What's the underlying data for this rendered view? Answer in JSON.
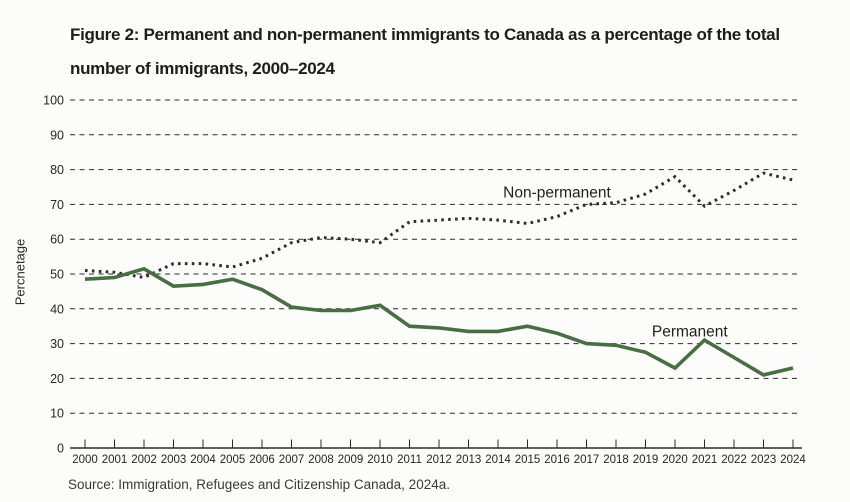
{
  "figure": {
    "title_line1": "Figure 2: Permanent and non-permanent immigrants to Canada as a percentage of the total",
    "title_line2": "number of immigrants, 2000–2024",
    "source": "Source: Immigration, Refugees and Citizenship Canada, 2024a."
  },
  "chart_data": {
    "type": "line",
    "title": "Figure 2: Permanent and non-permanent immigrants to Canada as a percentage of the total number of immigrants, 2000–2024",
    "xlabel": "",
    "ylabel": "Percnetage",
    "ylim": [
      0,
      100
    ],
    "yticks": [
      0,
      10,
      20,
      30,
      40,
      50,
      60,
      70,
      80,
      90,
      100
    ],
    "grid": "horizontal-dashed",
    "legend_position": "inline-annotations",
    "x": [
      2000,
      2001,
      2002,
      2003,
      2004,
      2005,
      2006,
      2007,
      2008,
      2009,
      2010,
      2011,
      2012,
      2013,
      2014,
      2015,
      2016,
      2017,
      2018,
      2019,
      2020,
      2021,
      2022,
      2023,
      2024
    ],
    "series": [
      {
        "name": "Non-permanent",
        "style": "dotted",
        "color": "#2d2d2d",
        "values": [
          51,
          50.5,
          49,
          53,
          53,
          52,
          54.5,
          59,
          60.5,
          60,
          59,
          65,
          65.5,
          66,
          65.5,
          64.5,
          66.5,
          70,
          70.5,
          73,
          78,
          69.5,
          74,
          79,
          77
        ],
        "label_anchor": {
          "year": 2016,
          "value": 72
        }
      },
      {
        "name": "Permanent",
        "style": "solid",
        "color": "#4a6e43",
        "values": [
          48.5,
          49,
          51.5,
          46.5,
          47,
          48.5,
          45.5,
          40.5,
          39.5,
          39.5,
          41,
          35,
          34.5,
          33.5,
          33.5,
          35,
          33,
          30,
          29.5,
          27.5,
          23,
          31,
          26,
          21,
          23
        ],
        "label_anchor": {
          "year": 2020.5,
          "value": 32
        }
      }
    ],
    "colors": {
      "grid": "#2b2b2b",
      "axis": "#2b2b2b",
      "tick_text": "#262626",
      "annotation_text": "#1f1f1f"
    }
  }
}
